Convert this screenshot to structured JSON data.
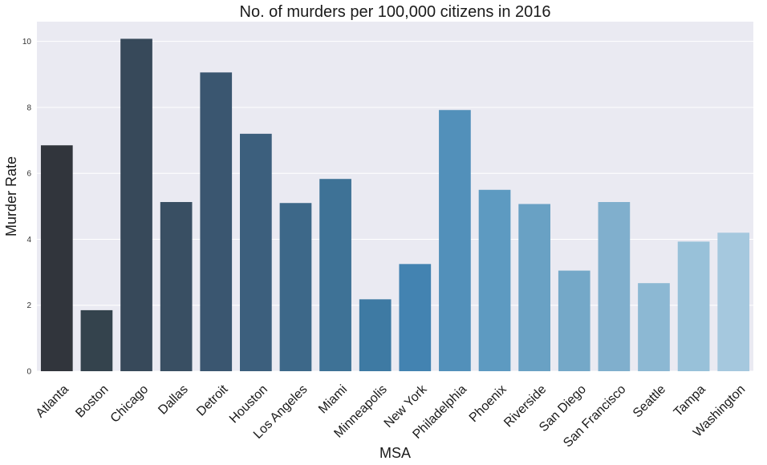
{
  "chart_data": {
    "type": "bar",
    "title": "No. of murders per 100,000 citizens in 2016",
    "xlabel": "MSA",
    "ylabel": "Murder Rate",
    "categories": [
      "Atlanta",
      "Boston",
      "Chicago",
      "Dallas",
      "Detroit",
      "Houston",
      "Los Angeles",
      "Miami",
      "Minneapolis",
      "New York",
      "Philadelphia",
      "Phoenix",
      "Riverside",
      "San Diego",
      "San Francisco",
      "Seattle",
      "Tampa",
      "Washington"
    ],
    "values": [
      6.85,
      1.85,
      10.08,
      5.13,
      9.06,
      7.2,
      5.1,
      5.83,
      2.18,
      3.25,
      7.92,
      5.5,
      5.07,
      3.05,
      5.13,
      2.67,
      3.93,
      4.2
    ],
    "ylim": [
      0,
      10.6
    ],
    "yticks": [
      0,
      2,
      4,
      6,
      8,
      10
    ],
    "grid": true,
    "legend": "none",
    "colors": [
      "#31353c",
      "#34434d",
      "#37495a",
      "#394f63",
      "#3a5670",
      "#3c5f7d",
      "#3d6889",
      "#3e7296",
      "#3e7aa3",
      "#4383b1",
      "#5290ba",
      "#5d9ac1",
      "#69a1c4",
      "#74a8c8",
      "#80afcd",
      "#8cb8d3",
      "#98c1d9",
      "#a5c8de"
    ],
    "plot_background": "#eaeaf2",
    "grid_color": "#ffffff"
  }
}
